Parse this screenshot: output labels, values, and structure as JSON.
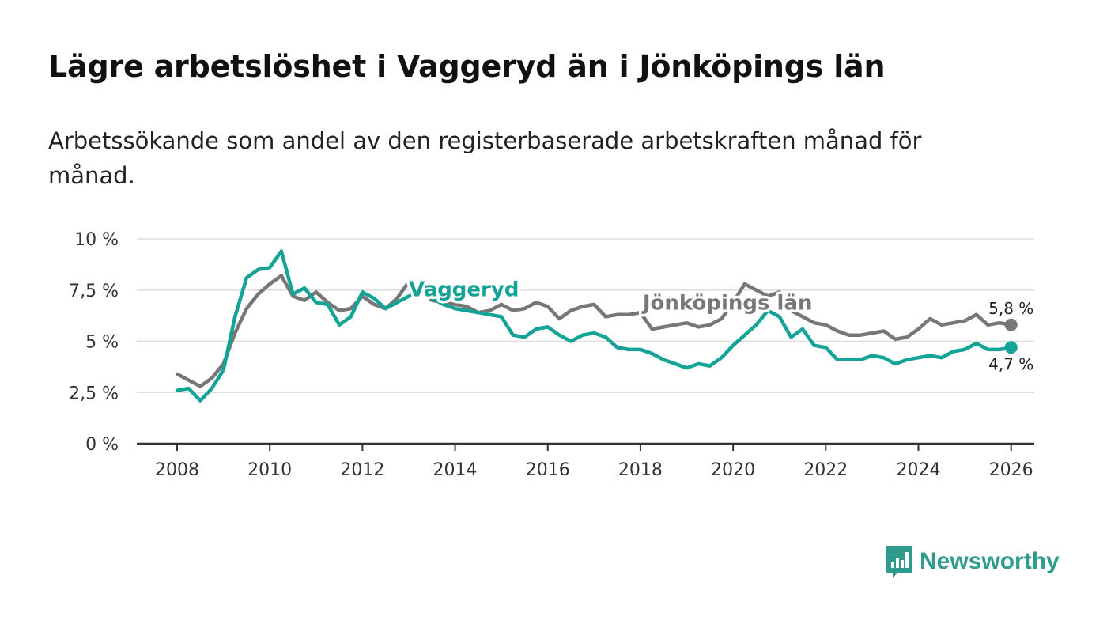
{
  "header": {
    "title": "Lägre arbetslöshet i Vaggeryd än i Jönköpings län",
    "subtitle": "Arbetssökande som andel av den registerbaserade arbetskraften månad för månad."
  },
  "brand": {
    "name": "Newsworthy",
    "icon": "newsworthy-logo-icon"
  },
  "colors": {
    "vaggeryd": "#13a397",
    "lan": "#777777",
    "grid": "#dddddd",
    "axis": "#333333"
  },
  "chart_data": {
    "type": "line",
    "title": "Lägre arbetslöshet i Vaggeryd än i Jönköpings län",
    "xlabel": "",
    "ylabel": "",
    "xlim": [
      2007.13,
      2026.5
    ],
    "ylim": [
      0,
      10
    ],
    "xticks": [
      2008,
      2010,
      2012,
      2014,
      2016,
      2018,
      2020,
      2022,
      2024,
      2026
    ],
    "xtick_labels": [
      "2008",
      "2010",
      "2012",
      "2014",
      "2016",
      "2018",
      "2020",
      "2022",
      "2024",
      "2026"
    ],
    "yticks": [
      0,
      2.5,
      5,
      7.5,
      10
    ],
    "ytick_labels": [
      "0 %",
      "2,5 %",
      "5 %",
      "7,5 %",
      "10 %"
    ],
    "grid": true,
    "series": [
      {
        "name": "Jönköpings län",
        "label": "Jönköpings län",
        "end_label": "5,8 %",
        "x": [
          2008.0,
          2008.25,
          2008.5,
          2008.75,
          2009.0,
          2009.25,
          2009.5,
          2009.75,
          2010.0,
          2010.25,
          2010.5,
          2010.75,
          2011.0,
          2011.25,
          2011.5,
          2011.75,
          2012.0,
          2012.25,
          2012.5,
          2012.75,
          2013.0,
          2013.25,
          2013.5,
          2013.75,
          2014.0,
          2014.25,
          2014.5,
          2014.75,
          2015.0,
          2015.25,
          2015.5,
          2015.75,
          2016.0,
          2016.25,
          2016.5,
          2016.75,
          2017.0,
          2017.25,
          2017.5,
          2017.75,
          2018.0,
          2018.25,
          2018.5,
          2018.75,
          2019.0,
          2019.25,
          2019.5,
          2019.75,
          2020.0,
          2020.25,
          2020.5,
          2020.75,
          2021.0,
          2021.25,
          2021.5,
          2021.75,
          2022.0,
          2022.25,
          2022.5,
          2022.75,
          2023.0,
          2023.25,
          2023.5,
          2023.75,
          2024.0,
          2024.25,
          2024.5,
          2024.75,
          2025.0,
          2025.25,
          2025.5,
          2025.75,
          2026.0
        ],
        "values": [
          3.4,
          3.1,
          2.8,
          3.2,
          3.9,
          5.4,
          6.6,
          7.3,
          7.8,
          8.2,
          7.2,
          7.0,
          7.4,
          6.9,
          6.5,
          6.6,
          7.2,
          6.8,
          6.6,
          7.1,
          7.9,
          7.6,
          7.0,
          6.9,
          6.8,
          6.7,
          6.4,
          6.5,
          6.8,
          6.5,
          6.6,
          6.9,
          6.7,
          6.1,
          6.5,
          6.7,
          6.8,
          6.2,
          6.3,
          6.3,
          6.4,
          5.6,
          5.7,
          5.8,
          5.9,
          5.7,
          5.8,
          6.1,
          6.9,
          7.8,
          7.5,
          7.2,
          7.4,
          6.5,
          6.2,
          5.9,
          5.8,
          5.5,
          5.3,
          5.3,
          5.4,
          5.5,
          5.1,
          5.2,
          5.6,
          6.1,
          5.8,
          5.9,
          6.0,
          6.3,
          5.8,
          5.9,
          5.8
        ]
      },
      {
        "name": "Vaggeryd",
        "label": "Vaggeryd",
        "end_label": "4,7 %",
        "x": [
          2008.0,
          2008.25,
          2008.5,
          2008.75,
          2009.0,
          2009.25,
          2009.5,
          2009.75,
          2010.0,
          2010.25,
          2010.5,
          2010.75,
          2011.0,
          2011.25,
          2011.5,
          2011.75,
          2012.0,
          2012.25,
          2012.5,
          2012.75,
          2013.0,
          2013.25,
          2013.5,
          2013.75,
          2014.0,
          2014.25,
          2014.5,
          2014.75,
          2015.0,
          2015.25,
          2015.5,
          2015.75,
          2016.0,
          2016.25,
          2016.5,
          2016.75,
          2017.0,
          2017.25,
          2017.5,
          2017.75,
          2018.0,
          2018.25,
          2018.5,
          2018.75,
          2019.0,
          2019.25,
          2019.5,
          2019.75,
          2020.0,
          2020.25,
          2020.5,
          2020.75,
          2021.0,
          2021.25,
          2021.5,
          2021.75,
          2022.0,
          2022.25,
          2022.5,
          2022.75,
          2023.0,
          2023.25,
          2023.5,
          2023.75,
          2024.0,
          2024.25,
          2024.5,
          2024.75,
          2025.0,
          2025.25,
          2025.5,
          2025.75,
          2026.0
        ],
        "values": [
          2.6,
          2.7,
          2.1,
          2.7,
          3.6,
          6.2,
          8.1,
          8.5,
          8.6,
          9.4,
          7.3,
          7.6,
          6.9,
          6.8,
          5.8,
          6.2,
          7.4,
          7.1,
          6.6,
          6.9,
          7.2,
          7.4,
          7.1,
          6.8,
          6.6,
          6.5,
          6.4,
          6.3,
          6.2,
          5.3,
          5.2,
          5.6,
          5.7,
          5.3,
          5.0,
          5.3,
          5.4,
          5.2,
          4.7,
          4.6,
          4.6,
          4.4,
          4.1,
          3.9,
          3.7,
          3.9,
          3.8,
          4.2,
          4.8,
          5.3,
          5.8,
          6.5,
          6.2,
          5.2,
          5.6,
          4.8,
          4.7,
          4.1,
          4.1,
          4.1,
          4.3,
          4.2,
          3.9,
          4.1,
          4.2,
          4.3,
          4.2,
          4.5,
          4.6,
          4.9,
          4.6,
          4.6,
          4.7
        ]
      }
    ]
  }
}
